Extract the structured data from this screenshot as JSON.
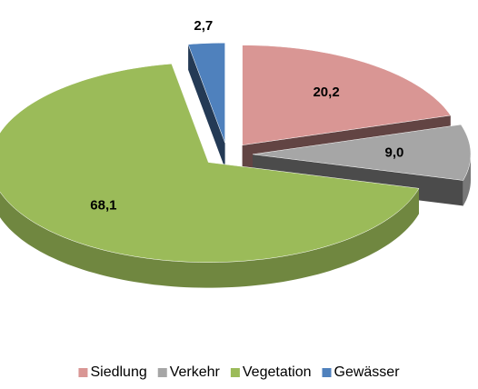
{
  "chart_data": {
    "type": "pie",
    "categories": [
      "Siedlung",
      "Verkehr",
      "Vegetation",
      "Gewässer"
    ],
    "values": [
      20.2,
      9.0,
      68.1,
      2.7
    ],
    "value_labels": [
      "20,2",
      "9,0",
      "68,1",
      "2,7"
    ],
    "colors": [
      "#d99694",
      "#a6a6a6",
      "#9bbb59",
      "#4f81bd"
    ],
    "legend": "bottom"
  }
}
